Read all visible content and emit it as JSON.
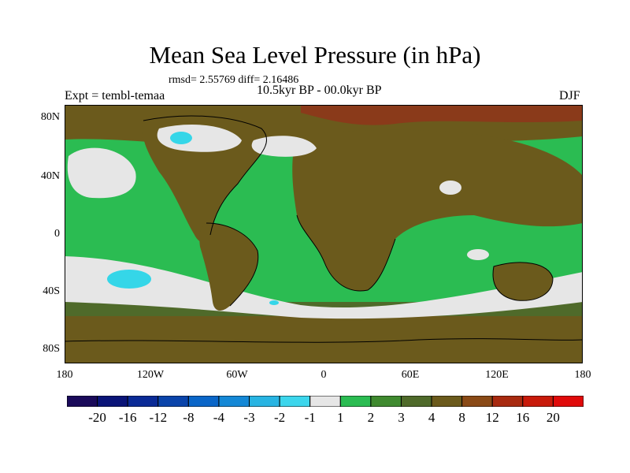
{
  "title": "Mean Sea Level Pressure (in hPa)",
  "stats": "rmsd= 2.55769 diff= 2.16486",
  "period": "10.5kyr BP - 00.0kyr BP",
  "experiment": "Expt = tembl-temaa",
  "season": "DJF",
  "axes": {
    "y_labels": [
      "80N",
      "40N",
      "0",
      "40S",
      "80S"
    ],
    "x_labels": [
      "180",
      "120W",
      "60W",
      "0",
      "60E",
      "120E",
      "180"
    ]
  },
  "colors": {
    "ocean_base": "#2bbc52",
    "land_base": "#6b5a1c",
    "mid_brown": "#7a4f1a",
    "dark_olive": "#4f6a2a",
    "light_gray": "#e6e6e6",
    "cyan": "#35d6e8",
    "red_brown": "#8a3a1a"
  },
  "colorbar": {
    "labels": [
      "-20",
      "-16",
      "-12",
      "-8",
      "-4",
      "-3",
      "-2",
      "-1",
      "1",
      "2",
      "3",
      "4",
      "8",
      "12",
      "16",
      "20"
    ],
    "colors": [
      "#1a0a5a",
      "#0a1478",
      "#0a2a96",
      "#0a44aa",
      "#0a66c8",
      "#1488d6",
      "#28b4e2",
      "#3cd6ec",
      "#e6e6e6",
      "#2bbc52",
      "#3f8a2f",
      "#4f6a2a",
      "#6b5a1c",
      "#8a4a16",
      "#a82a10",
      "#c81a0a",
      "#e00a0a"
    ]
  }
}
